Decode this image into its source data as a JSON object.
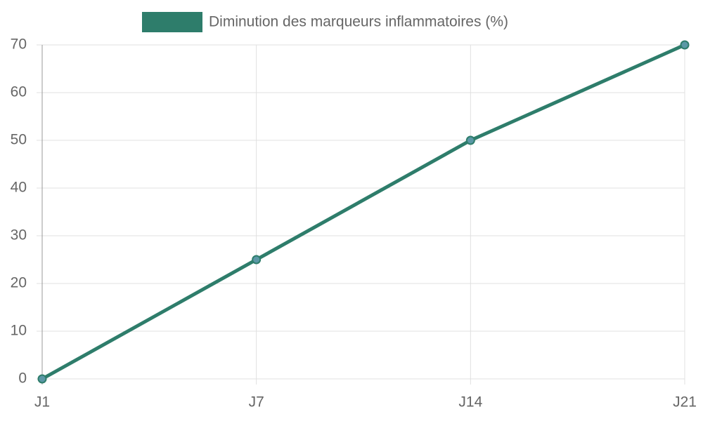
{
  "chart_data": {
    "type": "line",
    "categories": [
      "J1",
      "J7",
      "J14",
      "J21"
    ],
    "series": [
      {
        "name": "Diminution des marqueurs inflammatoires (%)",
        "color": "#2e7d6b",
        "point_color": "#5b98a6",
        "values": [
          0,
          25,
          50,
          70
        ]
      }
    ],
    "ylim": [
      0,
      70
    ],
    "yticks": [
      0,
      10,
      20,
      30,
      40,
      50,
      60,
      70
    ],
    "grid": true,
    "legend": "top"
  }
}
